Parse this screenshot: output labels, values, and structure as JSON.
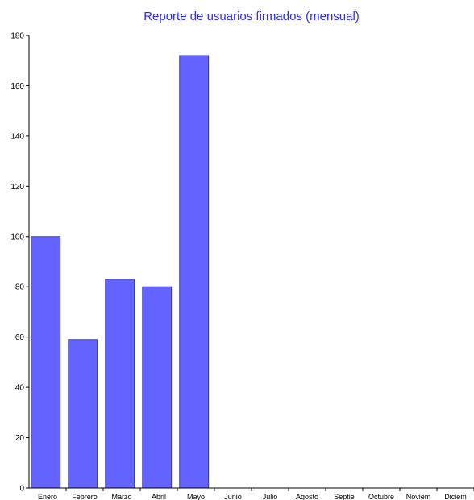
{
  "chart_data": {
    "type": "bar",
    "title": "Reporte de usuarios firmados (mensual)",
    "xlabel": "",
    "ylabel": "",
    "categories": [
      "Enero",
      "Febrero",
      "Marzo",
      "Abril",
      "Mayo",
      "Junio",
      "Julio",
      "Agosto",
      "Septie",
      "Octubre",
      "Noviem",
      "Diciem"
    ],
    "values": [
      100,
      59,
      83,
      80,
      172,
      0,
      0,
      0,
      0,
      0,
      0,
      0
    ],
    "ylim": [
      0,
      180
    ],
    "yticks": [
      0,
      20,
      40,
      60,
      80,
      100,
      120,
      140,
      160,
      180
    ],
    "grid": false,
    "legend": "none",
    "colors": {
      "bar": "#6363ff",
      "title": "#2b2bff",
      "axis": "#000000"
    }
  }
}
